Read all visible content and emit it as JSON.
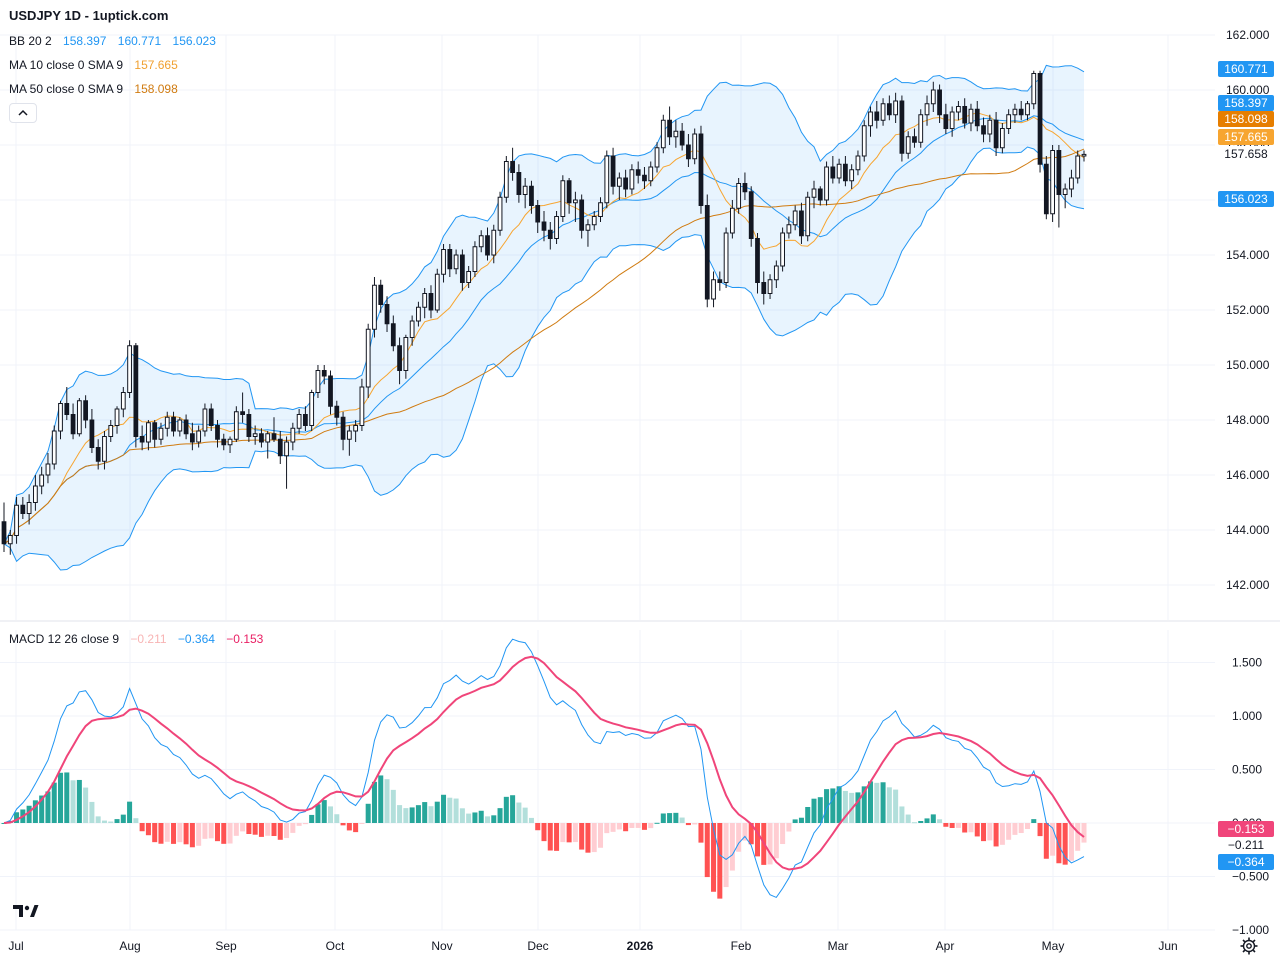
{
  "header": {
    "title": "USDJPY 1D - 1uptick.com"
  },
  "legends": {
    "bb": {
      "name": "BB 20 2",
      "values": [
        "158.397",
        "160.771",
        "156.023"
      ],
      "color": "#2196f3"
    },
    "ma10": {
      "name": "MA 10 close 0 SMA 9",
      "value": "157.665",
      "color": "#f0a030"
    },
    "ma50": {
      "name": "MA 50 close 0 SMA 9",
      "value": "158.098",
      "color": "#d07b10"
    },
    "macd": {
      "name": "MACD 12 26 close 9",
      "values": [
        "−0.211",
        "−0.364",
        "−0.153"
      ],
      "colors": [
        "#f8b4b4",
        "#2196f3",
        "#e91e63"
      ]
    }
  },
  "price_tags": [
    {
      "text": "160.771",
      "value": 160.771,
      "bg": "#2196f3",
      "fg": "#ffffff"
    },
    {
      "text": "158.397",
      "value": 158.397,
      "bg": "#2196f3",
      "fg": "#ffffff"
    },
    {
      "text": "158.098",
      "value": 158.098,
      "bg": "#e67e00",
      "fg": "#ffffff"
    },
    {
      "text": "157.665",
      "value": 157.665,
      "bg": "#f7a530",
      "fg": "#ffffff"
    },
    {
      "text": "157.658",
      "value": 157.658,
      "bg": "#ffffff",
      "fg": "#131722"
    },
    {
      "text": "156.023",
      "value": 156.023,
      "bg": "#2196f3",
      "fg": "#ffffff"
    }
  ],
  "macd_tags": [
    {
      "text": "−0.153",
      "value": -0.153,
      "bg": "#f0457a",
      "fg": "#ffffff"
    },
    {
      "text": "−0.211",
      "value": -0.211,
      "bg": "#ffffff",
      "fg": "#131722"
    },
    {
      "text": "−0.364",
      "value": -0.364,
      "bg": "#2196f3",
      "fg": "#ffffff"
    }
  ],
  "price_axis": {
    "ticks": [
      "162.000",
      "160.000",
      "158.000",
      "156.000",
      "154.000",
      "152.000",
      "150.000",
      "148.000",
      "146.000",
      "144.000",
      "142.000"
    ]
  },
  "macd_axis": {
    "ticks": [
      "1.500",
      "1.000",
      "0.500",
      "0.000",
      "−0.500",
      "−1.000"
    ]
  },
  "time_axis": {
    "labels": [
      "Jul",
      "Aug",
      "Sep",
      "Oct",
      "Nov",
      "Dec",
      "2026",
      "Feb",
      "Mar",
      "Apr",
      "May",
      "Jun"
    ]
  },
  "chart_data": {
    "type": "candlestick",
    "symbol": "USDJPY",
    "interval": "1D",
    "price_range": [
      142,
      162
    ],
    "macd_range": [
      -1,
      1.5
    ],
    "grid": true,
    "candles_ohlc": [
      [
        144.3,
        145.0,
        143.2,
        143.5
      ],
      [
        143.5,
        144.0,
        143.1,
        143.8
      ],
      [
        143.8,
        145.2,
        143.5,
        144.9
      ],
      [
        144.9,
        145.2,
        144.4,
        144.6
      ],
      [
        144.6,
        145.3,
        144.2,
        145.0
      ],
      [
        145.0,
        146.0,
        144.7,
        145.6
      ],
      [
        145.6,
        146.3,
        145.3,
        146.0
      ],
      [
        146.0,
        146.8,
        145.7,
        146.4
      ],
      [
        146.4,
        147.8,
        146.2,
        147.6
      ],
      [
        147.6,
        148.7,
        147.3,
        148.6
      ],
      [
        148.6,
        149.2,
        148.0,
        148.2
      ],
      [
        148.2,
        148.6,
        147.3,
        147.5
      ],
      [
        147.5,
        148.8,
        147.4,
        148.7
      ],
      [
        148.7,
        148.9,
        147.7,
        148.0
      ],
      [
        148.0,
        148.4,
        146.8,
        147.0
      ],
      [
        147.0,
        147.3,
        146.2,
        146.5
      ],
      [
        146.5,
        147.6,
        146.2,
        147.4
      ],
      [
        147.4,
        148.0,
        147.2,
        147.8
      ],
      [
        147.8,
        148.5,
        147.5,
        148.4
      ],
      [
        148.4,
        149.2,
        148.1,
        149.0
      ],
      [
        149.0,
        150.9,
        148.8,
        150.7
      ],
      [
        150.7,
        150.8,
        147.0,
        147.4
      ],
      [
        147.4,
        147.8,
        146.9,
        147.2
      ],
      [
        147.2,
        148.0,
        146.9,
        147.9
      ],
      [
        147.9,
        148.0,
        147.0,
        147.3
      ],
      [
        147.3,
        147.9,
        147.1,
        147.7
      ],
      [
        147.7,
        148.3,
        147.4,
        148.1
      ],
      [
        148.1,
        148.3,
        147.4,
        147.6
      ],
      [
        147.6,
        148.1,
        147.4,
        148.0
      ],
      [
        148.0,
        148.2,
        147.3,
        147.5
      ],
      [
        147.5,
        147.9,
        146.9,
        147.2
      ],
      [
        147.2,
        147.8,
        147.0,
        147.6
      ],
      [
        147.6,
        148.6,
        147.4,
        148.4
      ],
      [
        148.4,
        148.6,
        147.6,
        147.8
      ],
      [
        147.8,
        148.0,
        147.0,
        147.3
      ],
      [
        147.3,
        147.5,
        146.9,
        147.1
      ],
      [
        147.1,
        147.4,
        146.8,
        147.3
      ],
      [
        147.3,
        148.5,
        147.2,
        148.3
      ],
      [
        148.3,
        149.0,
        147.9,
        148.2
      ],
      [
        148.2,
        148.4,
        147.2,
        147.4
      ],
      [
        147.4,
        147.8,
        147.1,
        147.5
      ],
      [
        147.5,
        147.7,
        147.0,
        147.2
      ],
      [
        147.2,
        147.6,
        146.6,
        147.5
      ],
      [
        147.5,
        148.1,
        147.2,
        147.3
      ],
      [
        147.3,
        147.6,
        146.4,
        146.7
      ],
      [
        146.7,
        147.4,
        145.5,
        147.2
      ],
      [
        147.2,
        147.9,
        146.9,
        147.7
      ],
      [
        147.7,
        148.4,
        147.5,
        148.2
      ],
      [
        148.2,
        148.5,
        147.6,
        147.8
      ],
      [
        147.8,
        149.1,
        147.6,
        149.0
      ],
      [
        149.0,
        150.0,
        148.8,
        149.8
      ],
      [
        149.8,
        150.0,
        149.3,
        149.6
      ],
      [
        149.6,
        149.8,
        148.2,
        148.5
      ],
      [
        148.5,
        148.7,
        147.8,
        148.1
      ],
      [
        148.1,
        148.3,
        146.9,
        147.3
      ],
      [
        147.3,
        147.8,
        146.7,
        147.6
      ],
      [
        147.6,
        148.0,
        147.2,
        147.8
      ],
      [
        147.8,
        149.5,
        147.6,
        149.2
      ],
      [
        149.2,
        151.5,
        148.8,
        151.3
      ],
      [
        151.3,
        153.2,
        151.0,
        152.9
      ],
      [
        152.9,
        153.1,
        151.9,
        152.2
      ],
      [
        152.2,
        152.5,
        151.2,
        151.5
      ],
      [
        151.5,
        151.8,
        150.5,
        150.7
      ],
      [
        150.7,
        151.0,
        149.3,
        149.8
      ],
      [
        149.8,
        151.1,
        149.5,
        151.0
      ],
      [
        151.0,
        151.8,
        150.7,
        151.6
      ],
      [
        151.6,
        152.3,
        151.4,
        152.1
      ],
      [
        152.1,
        152.8,
        151.7,
        152.6
      ],
      [
        152.6,
        152.9,
        151.7,
        152.0
      ],
      [
        152.0,
        153.5,
        151.9,
        153.3
      ],
      [
        153.3,
        154.4,
        153.0,
        154.2
      ],
      [
        154.2,
        154.4,
        153.2,
        153.5
      ],
      [
        153.5,
        154.2,
        153.3,
        154.0
      ],
      [
        154.0,
        154.2,
        152.7,
        153.0
      ],
      [
        153.0,
        153.6,
        152.8,
        153.4
      ],
      [
        153.4,
        154.5,
        153.2,
        154.3
      ],
      [
        154.3,
        154.9,
        154.1,
        154.7
      ],
      [
        154.7,
        155.0,
        153.8,
        154.0
      ],
      [
        154.0,
        155.1,
        153.7,
        154.9
      ],
      [
        154.9,
        156.3,
        154.7,
        156.1
      ],
      [
        156.1,
        157.6,
        155.9,
        157.4
      ],
      [
        157.4,
        157.9,
        156.7,
        157.0
      ],
      [
        157.0,
        157.3,
        155.9,
        156.2
      ],
      [
        156.2,
        156.8,
        155.7,
        156.5
      ],
      [
        156.5,
        156.7,
        155.5,
        155.8
      ],
      [
        155.8,
        156.0,
        154.8,
        155.2
      ],
      [
        155.2,
        155.6,
        154.5,
        154.9
      ],
      [
        154.9,
        155.2,
        154.2,
        154.6
      ],
      [
        154.6,
        155.6,
        154.4,
        155.4
      ],
      [
        155.4,
        156.9,
        155.2,
        156.7
      ],
      [
        156.7,
        156.8,
        155.5,
        155.9
      ],
      [
        155.9,
        156.3,
        155.2,
        156.0
      ],
      [
        156.0,
        156.2,
        154.6,
        154.9
      ],
      [
        154.9,
        155.3,
        154.3,
        155.1
      ],
      [
        155.1,
        155.6,
        154.9,
        155.4
      ],
      [
        155.4,
        156.1,
        155.2,
        155.9
      ],
      [
        155.9,
        157.8,
        155.7,
        157.6
      ],
      [
        157.6,
        157.9,
        156.2,
        156.5
      ],
      [
        156.5,
        157.0,
        156.0,
        156.8
      ],
      [
        156.8,
        157.1,
        156.1,
        156.4
      ],
      [
        156.4,
        157.3,
        156.2,
        157.1
      ],
      [
        157.1,
        157.4,
        156.6,
        156.9
      ],
      [
        156.9,
        157.2,
        156.4,
        156.7
      ],
      [
        156.7,
        157.4,
        156.5,
        157.2
      ],
      [
        157.2,
        158.1,
        157.0,
        157.9
      ],
      [
        157.9,
        159.1,
        157.7,
        158.9
      ],
      [
        158.9,
        159.4,
        158.0,
        158.3
      ],
      [
        158.3,
        158.9,
        157.9,
        158.5
      ],
      [
        158.5,
        158.8,
        157.8,
        158.0
      ],
      [
        158.0,
        158.4,
        157.2,
        157.5
      ],
      [
        157.5,
        158.6,
        157.3,
        158.4
      ],
      [
        158.4,
        158.7,
        155.5,
        155.8
      ],
      [
        155.8,
        156.2,
        152.1,
        152.4
      ],
      [
        152.4,
        153.4,
        152.1,
        153.1
      ],
      [
        153.1,
        153.4,
        152.7,
        153.0
      ],
      [
        153.0,
        155.0,
        152.8,
        154.8
      ],
      [
        154.8,
        156.0,
        154.6,
        155.7
      ],
      [
        155.7,
        156.8,
        155.5,
        156.6
      ],
      [
        156.6,
        157.0,
        156.0,
        156.3
      ],
      [
        156.3,
        156.5,
        154.3,
        154.6
      ],
      [
        154.6,
        154.8,
        152.6,
        153.0
      ],
      [
        153.0,
        153.4,
        152.2,
        152.6
      ],
      [
        152.6,
        153.3,
        152.4,
        153.1
      ],
      [
        153.1,
        153.8,
        152.8,
        153.6
      ],
      [
        153.6,
        155.0,
        153.4,
        154.8
      ],
      [
        154.8,
        155.4,
        154.6,
        155.1
      ],
      [
        155.1,
        155.8,
        154.9,
        155.6
      ],
      [
        155.6,
        155.9,
        154.4,
        154.7
      ],
      [
        154.7,
        156.3,
        154.5,
        156.1
      ],
      [
        156.1,
        156.7,
        155.7,
        156.4
      ],
      [
        156.4,
        156.5,
        155.8,
        156.0
      ],
      [
        156.0,
        157.4,
        155.8,
        157.2
      ],
      [
        157.2,
        157.6,
        156.6,
        156.8
      ],
      [
        156.8,
        157.5,
        156.6,
        157.3
      ],
      [
        157.3,
        157.6,
        156.5,
        156.7
      ],
      [
        156.7,
        157.3,
        156.4,
        157.1
      ],
      [
        157.1,
        157.8,
        156.9,
        157.6
      ],
      [
        157.6,
        158.9,
        157.4,
        158.7
      ],
      [
        158.7,
        159.4,
        158.3,
        159.2
      ],
      [
        159.2,
        159.6,
        158.6,
        158.9
      ],
      [
        158.9,
        159.7,
        158.7,
        159.5
      ],
      [
        159.5,
        159.8,
        158.9,
        159.1
      ],
      [
        159.1,
        159.9,
        158.8,
        159.6
      ],
      [
        159.6,
        159.8,
        157.4,
        157.7
      ],
      [
        157.7,
        158.5,
        157.5,
        158.3
      ],
      [
        158.3,
        158.6,
        157.9,
        158.1
      ],
      [
        158.1,
        159.3,
        157.9,
        159.1
      ],
      [
        159.1,
        159.8,
        158.7,
        159.5
      ],
      [
        159.5,
        160.3,
        159.2,
        160.0
      ],
      [
        160.0,
        160.2,
        158.8,
        159.1
      ],
      [
        159.1,
        159.5,
        158.4,
        158.6
      ],
      [
        158.6,
        159.4,
        158.3,
        159.2
      ],
      [
        159.2,
        159.6,
        158.9,
        159.4
      ],
      [
        159.4,
        159.7,
        158.6,
        158.8
      ],
      [
        158.8,
        159.5,
        158.5,
        159.3
      ],
      [
        159.3,
        159.6,
        158.5,
        158.7
      ],
      [
        158.7,
        159.0,
        158.1,
        158.4
      ],
      [
        158.4,
        159.1,
        158.1,
        158.9
      ],
      [
        158.9,
        159.2,
        157.6,
        157.9
      ],
      [
        157.9,
        158.8,
        157.7,
        158.6
      ],
      [
        158.6,
        159.3,
        158.4,
        159.1
      ],
      [
        159.1,
        159.5,
        158.8,
        159.3
      ],
      [
        159.3,
        159.6,
        158.9,
        159.1
      ],
      [
        159.1,
        159.6,
        158.9,
        159.5
      ],
      [
        159.5,
        160.7,
        159.3,
        160.6
      ],
      [
        160.6,
        160.7,
        157.0,
        157.3
      ],
      [
        157.3,
        157.6,
        155.3,
        155.5
      ],
      [
        155.5,
        158.0,
        155.2,
        157.8
      ],
      [
        157.8,
        158.0,
        155.0,
        156.2
      ],
      [
        156.2,
        156.6,
        155.7,
        156.4
      ],
      [
        156.4,
        157.1,
        156.1,
        156.8
      ],
      [
        156.8,
        157.8,
        156.6,
        157.6
      ],
      [
        157.6,
        157.8,
        157.4,
        157.658
      ]
    ],
    "bollinger": {
      "upper": 160.771,
      "middle": 158.397,
      "lower": 156.023
    },
    "ma10_last": 157.665,
    "ma50_last": 158.098,
    "macd": {
      "histogram_last": -0.211,
      "macd_last": -0.364,
      "signal_last": -0.153
    }
  }
}
